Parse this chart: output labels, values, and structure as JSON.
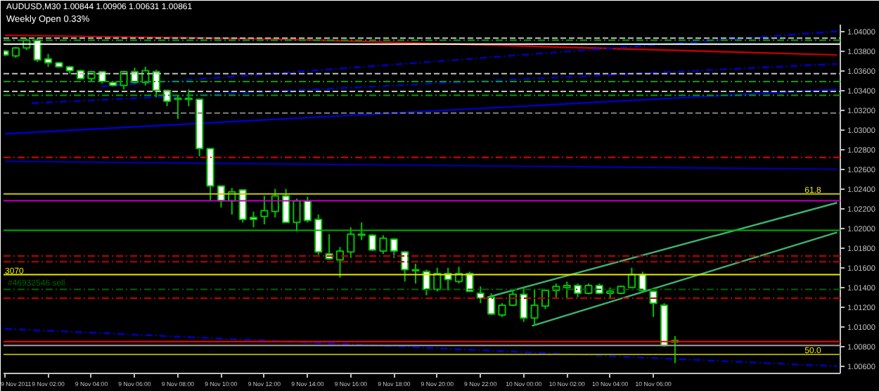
{
  "chart_data": {
    "type": "candlestick",
    "title": "AUDUSD,M30  1.00844 1.00906 1.00631 1.00861",
    "annotations": [
      "Weekly Open 0.33%",
      {
        "text": "61.8",
        "x": "2011-11-10T13:00",
        "y": 1.0235
      },
      {
        "text": "3070",
        "x": "2011-11-09T00:00",
        "y": 1.0153
      },
      {
        "text": "50.0",
        "x": "2011-11-10T13:00",
        "y": 1.0072
      }
    ],
    "color": "#00c000",
    "x": [
      "2011-11-09T00:00",
      "2011-11-09T00:30",
      "2011-11-09T01:00",
      "2011-11-09T01:30",
      "2011-11-09T02:00",
      "2011-11-09T02:30",
      "2011-11-09T03:00",
      "2011-11-09T03:30",
      "2011-11-09T04:00",
      "2011-11-09T04:30",
      "2011-11-09T05:00",
      "2011-11-09T05:30",
      "2011-11-09T06:00",
      "2011-11-09T06:30",
      "2011-11-09T07:00",
      "2011-11-09T07:30",
      "2011-11-09T08:00",
      "2011-11-09T08:30",
      "2011-11-09T09:00",
      "2011-11-09T09:30",
      "2011-11-09T10:00",
      "2011-11-09T10:30",
      "2011-11-09T11:00",
      "2011-11-09T11:30",
      "2011-11-09T12:00",
      "2011-11-09T12:30",
      "2011-11-09T13:00",
      "2011-11-09T13:30",
      "2011-11-09T14:00",
      "2011-11-09T14:30",
      "2011-11-09T15:00",
      "2011-11-09T15:30",
      "2011-11-09T16:00",
      "2011-11-09T16:30",
      "2011-11-09T17:00",
      "2011-11-09T17:30",
      "2011-11-09T18:00",
      "2011-11-09T18:30",
      "2011-11-09T19:00",
      "2011-11-09T19:30",
      "2011-11-09T20:00",
      "2011-11-09T20:30",
      "2011-11-09T21:00",
      "2011-11-09T21:30",
      "2011-11-09T22:00",
      "2011-11-09T22:30",
      "2011-11-09T23:00",
      "2011-11-09T23:30",
      "2011-11-10T00:00",
      "2011-11-10T00:30",
      "2011-11-10T01:00",
      "2011-11-10T01:30",
      "2011-11-10T02:00",
      "2011-11-10T02:30",
      "2011-11-10T03:00",
      "2011-11-10T03:30",
      "2011-11-10T04:00",
      "2011-11-10T04:30",
      "2011-11-10T05:00",
      "2011-11-10T05:30",
      "2011-11-10T06:00",
      "2011-11-10T06:30",
      "2011-11-10T07:00"
    ],
    "ohlc": [
      [
        1.038,
        1.0381,
        1.0375,
        1.0376
      ],
      [
        1.0375,
        1.0384,
        1.0373,
        1.0383
      ],
      [
        1.0383,
        1.0393,
        1.0381,
        1.0391
      ],
      [
        1.0391,
        1.0393,
        1.0369,
        1.0371
      ],
      [
        1.0372,
        1.0377,
        1.0364,
        1.0368
      ],
      [
        1.0368,
        1.0369,
        1.0363,
        1.0364
      ],
      [
        1.0364,
        1.0365,
        1.0357,
        1.036
      ],
      [
        1.036,
        1.0361,
        1.0351,
        1.0352
      ],
      [
        1.0352,
        1.036,
        1.0349,
        1.0359
      ],
      [
        1.0359,
        1.036,
        1.0347,
        1.0349
      ],
      [
        1.0348,
        1.0349,
        1.0344,
        1.0345
      ],
      [
        1.0345,
        1.036,
        1.0341,
        1.0359
      ],
      [
        1.0359,
        1.0363,
        1.0347,
        1.0348
      ],
      [
        1.0348,
        1.0364,
        1.0345,
        1.036
      ],
      [
        1.0359,
        1.0361,
        1.0333,
        1.034
      ],
      [
        1.034,
        1.034,
        1.0324,
        1.0329
      ],
      [
        1.0331,
        1.0335,
        1.0311,
        1.0332
      ],
      [
        1.0331,
        1.0341,
        1.0324,
        1.0332
      ],
      [
        1.0331,
        1.0331,
        1.0273,
        1.0281
      ],
      [
        1.0281,
        1.0281,
        1.0228,
        1.0243
      ],
      [
        1.0243,
        1.0243,
        1.0221,
        1.0228
      ],
      [
        1.0228,
        1.0241,
        1.0214,
        1.0237
      ],
      [
        1.0239,
        1.0239,
        1.0206,
        1.0209
      ],
      [
        1.0211,
        1.0217,
        1.0201,
        1.0209
      ],
      [
        1.0212,
        1.0233,
        1.0204,
        1.0218
      ],
      [
        1.0217,
        1.024,
        1.0211,
        1.0233
      ],
      [
        1.0233,
        1.024,
        1.0206,
        1.0206
      ],
      [
        1.0206,
        1.023,
        1.0197,
        1.0228
      ],
      [
        1.0228,
        1.0232,
        1.0206,
        1.0208
      ],
      [
        1.0209,
        1.0214,
        1.0173,
        1.0176
      ],
      [
        1.0174,
        1.0194,
        1.0168,
        1.0169
      ],
      [
        1.0168,
        1.0181,
        1.015,
        1.0177
      ],
      [
        1.0176,
        1.0201,
        1.017,
        1.0194
      ],
      [
        1.0194,
        1.0206,
        1.0188,
        1.0193
      ],
      [
        1.0193,
        1.0194,
        1.0177,
        1.0178
      ],
      [
        1.0177,
        1.0193,
        1.0174,
        1.019
      ],
      [
        1.0189,
        1.019,
        1.017,
        1.0177
      ],
      [
        1.0176,
        1.0177,
        1.0146,
        1.0158
      ],
      [
        1.0158,
        1.0164,
        1.0144,
        1.0157
      ],
      [
        1.0156,
        1.0158,
        1.0132,
        1.0138
      ],
      [
        1.0138,
        1.016,
        1.0136,
        1.0154
      ],
      [
        1.0154,
        1.016,
        1.0137,
        1.0148
      ],
      [
        1.0146,
        1.0161,
        1.0144,
        1.0154
      ],
      [
        1.0154,
        1.0156,
        1.0136,
        1.0136
      ],
      [
        1.0134,
        1.0141,
        1.0124,
        1.0129
      ],
      [
        1.013,
        1.0134,
        1.0112,
        1.0113
      ],
      [
        1.0112,
        1.0124,
        1.011,
        1.0122
      ],
      [
        1.0122,
        1.0137,
        1.0121,
        1.0133
      ],
      [
        1.0133,
        1.014,
        1.0105,
        1.0109
      ],
      [
        1.0109,
        1.0138,
        1.0101,
        1.0122
      ],
      [
        1.0121,
        1.0138,
        1.0118,
        1.0137
      ],
      [
        1.0137,
        1.0144,
        1.013,
        1.0141
      ],
      [
        1.014,
        1.0146,
        1.0128,
        1.0142
      ],
      [
        1.0142,
        1.0144,
        1.013,
        1.0134
      ],
      [
        1.0134,
        1.0144,
        1.0133,
        1.0142
      ],
      [
        1.0142,
        1.0144,
        1.0133,
        1.0134
      ],
      [
        1.0134,
        1.014,
        1.0128,
        1.0136
      ],
      [
        1.0134,
        1.0142,
        1.0133,
        1.0141
      ],
      [
        1.014,
        1.016,
        1.014,
        1.0153
      ],
      [
        1.0153,
        1.0156,
        1.0136,
        1.0137
      ],
      [
        1.0136,
        1.0137,
        1.011,
        1.0124
      ],
      [
        1.0122,
        1.0124,
        1.008,
        1.0081
      ],
      [
        1.00844,
        1.00906,
        1.00631,
        1.00861
      ]
    ],
    "series": [
      {
        "type": "line",
        "color": "#c00000",
        "line_style": "solid",
        "x": [
          "2011-11-09T00:00",
          "2011-11-09T12:50",
          "2011-11-09T19:17",
          "2011-11-10T14:30"
        ],
        "values": [
          1.0396,
          1.0392,
          1.0388,
          1.0376
        ]
      },
      {
        "type": "line",
        "color": "#0000c8",
        "line_style": "dashdot",
        "x": [
          "2011-11-09T04:27",
          "2011-11-10T14:30"
        ],
        "values": [
          1.0344,
          1.04
        ]
      },
      {
        "type": "line",
        "color": "#0000c8",
        "line_style": "dashdot",
        "x": [
          "2011-11-09T01:14",
          "2011-11-10T14:30"
        ],
        "values": [
          1.0327,
          1.0367
        ]
      },
      {
        "type": "line",
        "color": "#0000c8",
        "line_style": "solid",
        "x": [
          "2011-11-09T00:00",
          "2011-11-10T14:30"
        ],
        "values": [
          1.0296,
          1.0341
        ]
      },
      {
        "type": "line",
        "color": "#0000a0",
        "line_style": "solid",
        "x": [
          "2011-11-09T00:00",
          "2011-11-10T14:30"
        ],
        "values": [
          1.0268,
          1.026
        ]
      },
      {
        "type": "line",
        "color": "#0000c8",
        "line_style": "dashdot",
        "x": [
          "2011-11-09T00:00",
          "2011-11-10T14:30"
        ],
        "values": [
          1.0098,
          1.006
        ]
      },
      {
        "type": "line",
        "color": "#3cb371",
        "line_style": "solid",
        "x": [
          "2011-11-09T22:19",
          "2011-11-10T14:30"
        ],
        "values": [
          1.013,
          1.0226
        ]
      },
      {
        "type": "line",
        "color": "#3cb371",
        "line_style": "solid",
        "x": [
          "2011-11-10T00:23",
          "2011-11-10T14:30"
        ],
        "values": [
          1.0101,
          1.0196
        ]
      }
    ],
    "ref_lines": [
      {
        "axis": "y",
        "value": 1.0393,
        "color": "#c0c0c0",
        "line_style": "dashed"
      },
      {
        "axis": "y",
        "value": 1.0391,
        "color": "#00a000",
        "line_style": "dashdot"
      },
      {
        "axis": "y",
        "value": 1.0387,
        "color": "#ffffff",
        "line_style": "solid"
      },
      {
        "axis": "y",
        "value": 1.0357,
        "color": "#c0c0c0",
        "line_style": "dashed"
      },
      {
        "axis": "y",
        "value": 1.0349,
        "color": "#00a000",
        "line_style": "dashdot"
      },
      {
        "axis": "y",
        "value": 1.0339,
        "color": "#c0c0c0",
        "line_style": "dashed"
      },
      {
        "axis": "y",
        "value": 1.0335,
        "color": "#00a000",
        "line_style": "dashdot"
      },
      {
        "axis": "y",
        "value": 1.0317,
        "color": "#808080",
        "line_style": "dashed"
      },
      {
        "axis": "y",
        "value": 1.0272,
        "color": "#e00000",
        "line_style": "dashdot"
      },
      {
        "axis": "y",
        "value": 1.0235,
        "color": "#c8c800",
        "line_style": "solid"
      },
      {
        "axis": "y",
        "value": 1.0228,
        "color": "#c000c0",
        "line_style": "solid"
      },
      {
        "axis": "y",
        "value": 1.0198,
        "color": "#00b000",
        "line_style": "solid"
      },
      {
        "axis": "y",
        "value": 1.0172,
        "color": "#c00000",
        "line_style": "dashdot"
      },
      {
        "axis": "y",
        "value": 1.0166,
        "color": "#c00000",
        "line_style": "dashdot"
      },
      {
        "axis": "y",
        "value": 1.0153,
        "color": "#e8e800",
        "line_style": "solid"
      },
      {
        "axis": "y",
        "value": 1.0138,
        "color": "#006400",
        "line_style": "dashdot",
        "label": "#46932546 sell"
      },
      {
        "axis": "y",
        "value": 1.0129,
        "color": "#c00000",
        "line_style": "dashdot"
      },
      {
        "axis": "y",
        "value": 1.0085,
        "color": "#ff0000",
        "line_style": "solid"
      },
      {
        "axis": "y",
        "value": 1.0081,
        "color": "#a0a0a0",
        "line_style": "solid"
      },
      {
        "axis": "y",
        "value": 1.0072,
        "color": "#a0a000",
        "line_style": "solid"
      }
    ],
    "xlim": [
      "2011-11-08T23:56",
      "2011-11-10T14:39"
    ],
    "ylim": [
      1.00527,
      1.04068
    ],
    "xticks": [
      {
        "value": "2011-11-09T00:00",
        "label": "9 Nov 2011"
      },
      {
        "value": "2011-11-09T02:00",
        "label": "9 Nov 02:00"
      },
      {
        "value": "2011-11-09T04:00",
        "label": "9 Nov 04:00"
      },
      {
        "value": "2011-11-09T06:00",
        "label": "9 Nov 06:00"
      },
      {
        "value": "2011-11-09T08:00",
        "label": "9 Nov 08:00"
      },
      {
        "value": "2011-11-09T10:00",
        "label": "9 Nov 10:00"
      },
      {
        "value": "2011-11-09T12:00",
        "label": "9 Nov 12:00"
      },
      {
        "value": "2011-11-09T14:00",
        "label": "9 Nov 14:00"
      },
      {
        "value": "2011-11-09T16:00",
        "label": "9 Nov 16:00"
      },
      {
        "value": "2011-11-09T18:00",
        "label": "9 Nov 18:00"
      },
      {
        "value": "2011-11-09T20:00",
        "label": "9 Nov 20:00"
      },
      {
        "value": "2011-11-09T22:00",
        "label": "9 Nov 22:00"
      },
      {
        "value": "2011-11-10T00:00",
        "label": "10 Nov 00:00"
      },
      {
        "value": "2011-11-10T02:00",
        "label": "10 Nov 02:00"
      },
      {
        "value": "2011-11-10T04:00",
        "label": "10 Nov 04:00"
      },
      {
        "value": "2011-11-10T06:00",
        "label": "10 Nov 06:00"
      }
    ],
    "yticks": [
      {
        "value": 1.006,
        "label": "1.00600"
      },
      {
        "value": 1.008,
        "label": "1.00800"
      },
      {
        "value": 1.01,
        "label": "1.01000"
      },
      {
        "value": 1.012,
        "label": "1.01200"
      },
      {
        "value": 1.014,
        "label": "1.01400"
      },
      {
        "value": 1.016,
        "label": "1.01600"
      },
      {
        "value": 1.018,
        "label": "1.01800"
      },
      {
        "value": 1.02,
        "label": "1.02000"
      },
      {
        "value": 1.022,
        "label": "1.02200"
      },
      {
        "value": 1.024,
        "label": "1.02400"
      },
      {
        "value": 1.026,
        "label": "1.02600"
      },
      {
        "value": 1.028,
        "label": "1.02800"
      },
      {
        "value": 1.03,
        "label": "1.03000"
      },
      {
        "value": 1.032,
        "label": "1.03200"
      },
      {
        "value": 1.034,
        "label": "1.03400"
      },
      {
        "value": 1.036,
        "label": "1.03600"
      },
      {
        "value": 1.038,
        "label": "1.03800"
      },
      {
        "value": 1.04,
        "label": "1.04000"
      }
    ]
  }
}
